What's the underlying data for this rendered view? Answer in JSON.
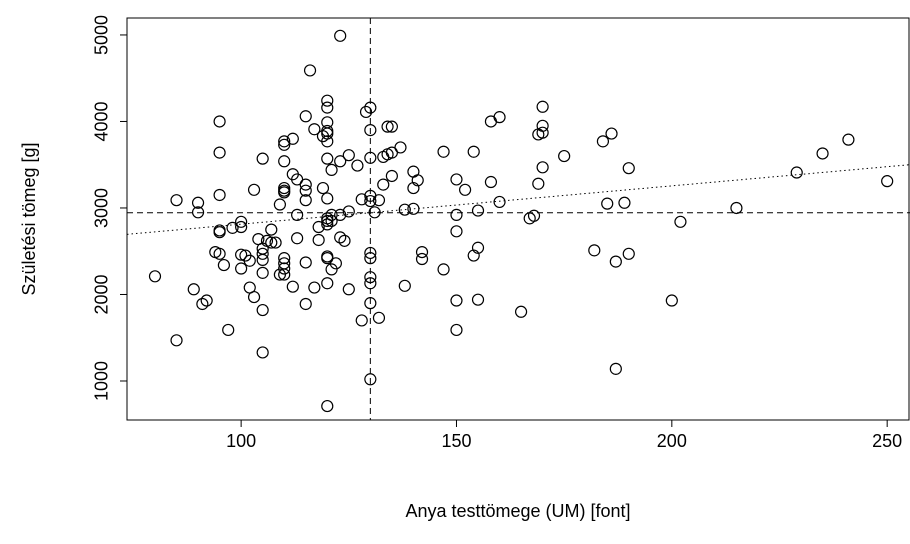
{
  "chart_data": {
    "type": "scatter",
    "xlabel": "Anya testtömege (UM) [font]",
    "ylabel": "Születési tömeg [g]",
    "xlim": [
      73.5,
      255.3
    ],
    "ylim": [
      549,
      5196
    ],
    "xticks": [
      100,
      150,
      200,
      250
    ],
    "yticks": [
      1000,
      2000,
      3000,
      4000,
      5000
    ],
    "color": "#000000",
    "reference_lines": {
      "x": 130,
      "y": 2945
    },
    "regression": {
      "intercept": 2369.6,
      "slope": 4.43
    },
    "x": [
      80,
      85,
      85,
      89,
      90,
      90,
      91,
      92,
      94,
      95,
      95,
      95,
      95,
      95,
      95,
      96,
      97,
      98,
      100,
      100,
      100,
      100,
      101,
      102,
      102,
      103,
      103,
      104,
      105,
      105,
      105,
      105,
      105,
      105,
      105,
      106,
      107,
      107,
      108,
      109,
      109,
      110,
      110,
      110,
      110,
      110,
      110,
      110,
      110,
      110,
      110,
      112,
      112,
      112,
      113,
      113,
      113,
      115,
      115,
      115,
      115,
      115,
      115,
      116,
      117,
      117,
      118,
      118,
      119,
      119,
      120,
      120,
      120,
      120,
      120,
      120,
      120,
      120,
      120,
      120,
      120,
      120,
      120,
      120,
      120,
      121,
      121,
      121,
      121,
      122,
      123,
      123,
      123,
      123,
      124,
      125,
      125,
      125,
      127,
      128,
      128,
      129,
      130,
      130,
      130,
      130,
      130,
      130,
      130,
      130,
      130,
      130,
      130,
      131,
      132,
      132,
      133,
      133,
      134,
      134,
      135,
      135,
      135,
      137,
      138,
      138,
      140,
      140,
      140,
      141,
      142,
      142,
      147,
      147,
      150,
      150,
      150,
      150,
      150,
      152,
      154,
      154,
      155,
      155,
      155,
      158,
      158,
      160,
      160,
      165,
      167,
      168,
      169,
      169,
      170,
      170,
      170,
      170,
      175,
      182,
      184,
      185,
      186,
      187,
      187,
      189,
      190,
      190,
      200,
      202,
      215,
      229,
      235,
      241,
      250
    ],
    "y": [
      2210,
      1470,
      3090,
      2060,
      2950,
      3060,
      1890,
      1930,
      2490,
      2470,
      2720,
      2740,
      3150,
      3640,
      4000,
      2340,
      1590,
      2770,
      2300,
      2460,
      2780,
      2840,
      2450,
      2080,
      2390,
      1970,
      3210,
      2640,
      1330,
      1820,
      2250,
      2400,
      2470,
      2530,
      3570,
      2620,
      2600,
      2750,
      2600,
      2230,
      3040,
      2230,
      2300,
      2360,
      2420,
      3180,
      3200,
      3230,
      3540,
      3730,
      3770,
      2090,
      3390,
      3800,
      2650,
      2920,
      3330,
      1890,
      2370,
      3090,
      3200,
      3270,
      4060,
      4590,
      2080,
      3910,
      2630,
      2780,
      3230,
      3830,
      710,
      2130,
      2420,
      2440,
      2810,
      2850,
      2880,
      3110,
      3570,
      3770,
      3860,
      3890,
      3990,
      4160,
      4240,
      2290,
      2850,
      2920,
      3440,
      2360,
      2660,
      2920,
      3540,
      4990,
      2620,
      2060,
      2960,
      3610,
      3490,
      1700,
      3100,
      4110,
      1020,
      1900,
      2130,
      2200,
      2420,
      2480,
      3080,
      3140,
      3580,
      3900,
      4160,
      2950,
      1730,
      3090,
      3270,
      3590,
      3620,
      3940,
      3370,
      3640,
      3940,
      3700,
      2100,
      2980,
      2990,
      3230,
      3420,
      3320,
      2410,
      2490,
      2290,
      3650,
      1590,
      1930,
      2730,
      2920,
      3330,
      3210,
      2450,
      3650,
      1940,
      2540,
      2970,
      3300,
      4000,
      3070,
      4050,
      1800,
      2880,
      2910,
      3280,
      3850,
      3470,
      3870,
      3950,
      4170,
      3600,
      2510,
      3770,
      3050,
      3860,
      1140,
      2380,
      3060,
      2470,
      3460,
      1930,
      2840,
      3000,
      3410,
      3630,
      3790,
      3310
    ]
  }
}
